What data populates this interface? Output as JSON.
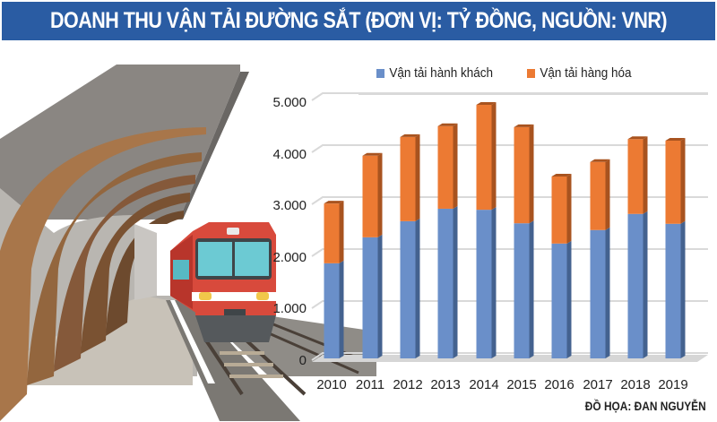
{
  "header": {
    "title": "DOANH THU VẬN TẢI ĐƯỜNG SẮT (ĐƠN VỊ: TỶ ĐỒNG, NGUỒN: VNR)"
  },
  "legend": {
    "items": [
      {
        "label": "Vận tải hành khách",
        "color": "#6a8fc9"
      },
      {
        "label": "Vận tải hàng hóa",
        "color": "#ec7a33"
      }
    ]
  },
  "axis": {
    "y_ticks": [
      "0",
      "1.000",
      "2.000",
      "3.000",
      "4.000",
      "5.000"
    ],
    "x_ticks": [
      "2010",
      "2011",
      "2012",
      "2013",
      "2014",
      "2015",
      "2016",
      "2017",
      "2018",
      "2019"
    ]
  },
  "credit": "ĐỒ HỌA: ĐAN NGUYỄN",
  "colors": {
    "title_bg": "#2a5ca3",
    "passenger": "#6a8fc9",
    "passenger_side": "#44628f",
    "freight": "#ec7a33",
    "freight_side": "#a8531f",
    "gridline": "#d9d9d9"
  },
  "chart_data": {
    "type": "bar",
    "stacked": true,
    "title": "DOANH THU VẬN TẢI ĐƯỜNG SẮT (ĐƠN VỊ: TỶ ĐỒNG, NGUỒN: VNR)",
    "xlabel": "",
    "ylabel": "",
    "categories": [
      "2010",
      "2011",
      "2012",
      "2013",
      "2014",
      "2015",
      "2016",
      "2017",
      "2018",
      "2019"
    ],
    "series": [
      {
        "name": "Vận tải hành khách",
        "color": "#6a8fc9",
        "values": [
          1830,
          2330,
          2640,
          2880,
          2860,
          2600,
          2210,
          2470,
          2780,
          2590
        ]
      },
      {
        "name": "Vận tải hàng hóa",
        "color": "#ec7a33",
        "values": [
          1150,
          1570,
          1620,
          1590,
          2020,
          1850,
          1290,
          1310,
          1440,
          1600
        ]
      }
    ],
    "totals": [
      2980,
      3900,
      4260,
      4470,
      4880,
      4450,
      3500,
      3780,
      4220,
      4190
    ],
    "ylim": [
      0,
      5000
    ],
    "yticks": [
      0,
      1000,
      2000,
      3000,
      4000,
      5000
    ],
    "grid": true,
    "legend_position": "top",
    "annotations": [
      "ĐỒ HỌA: ĐAN NGUYỄN"
    ]
  }
}
